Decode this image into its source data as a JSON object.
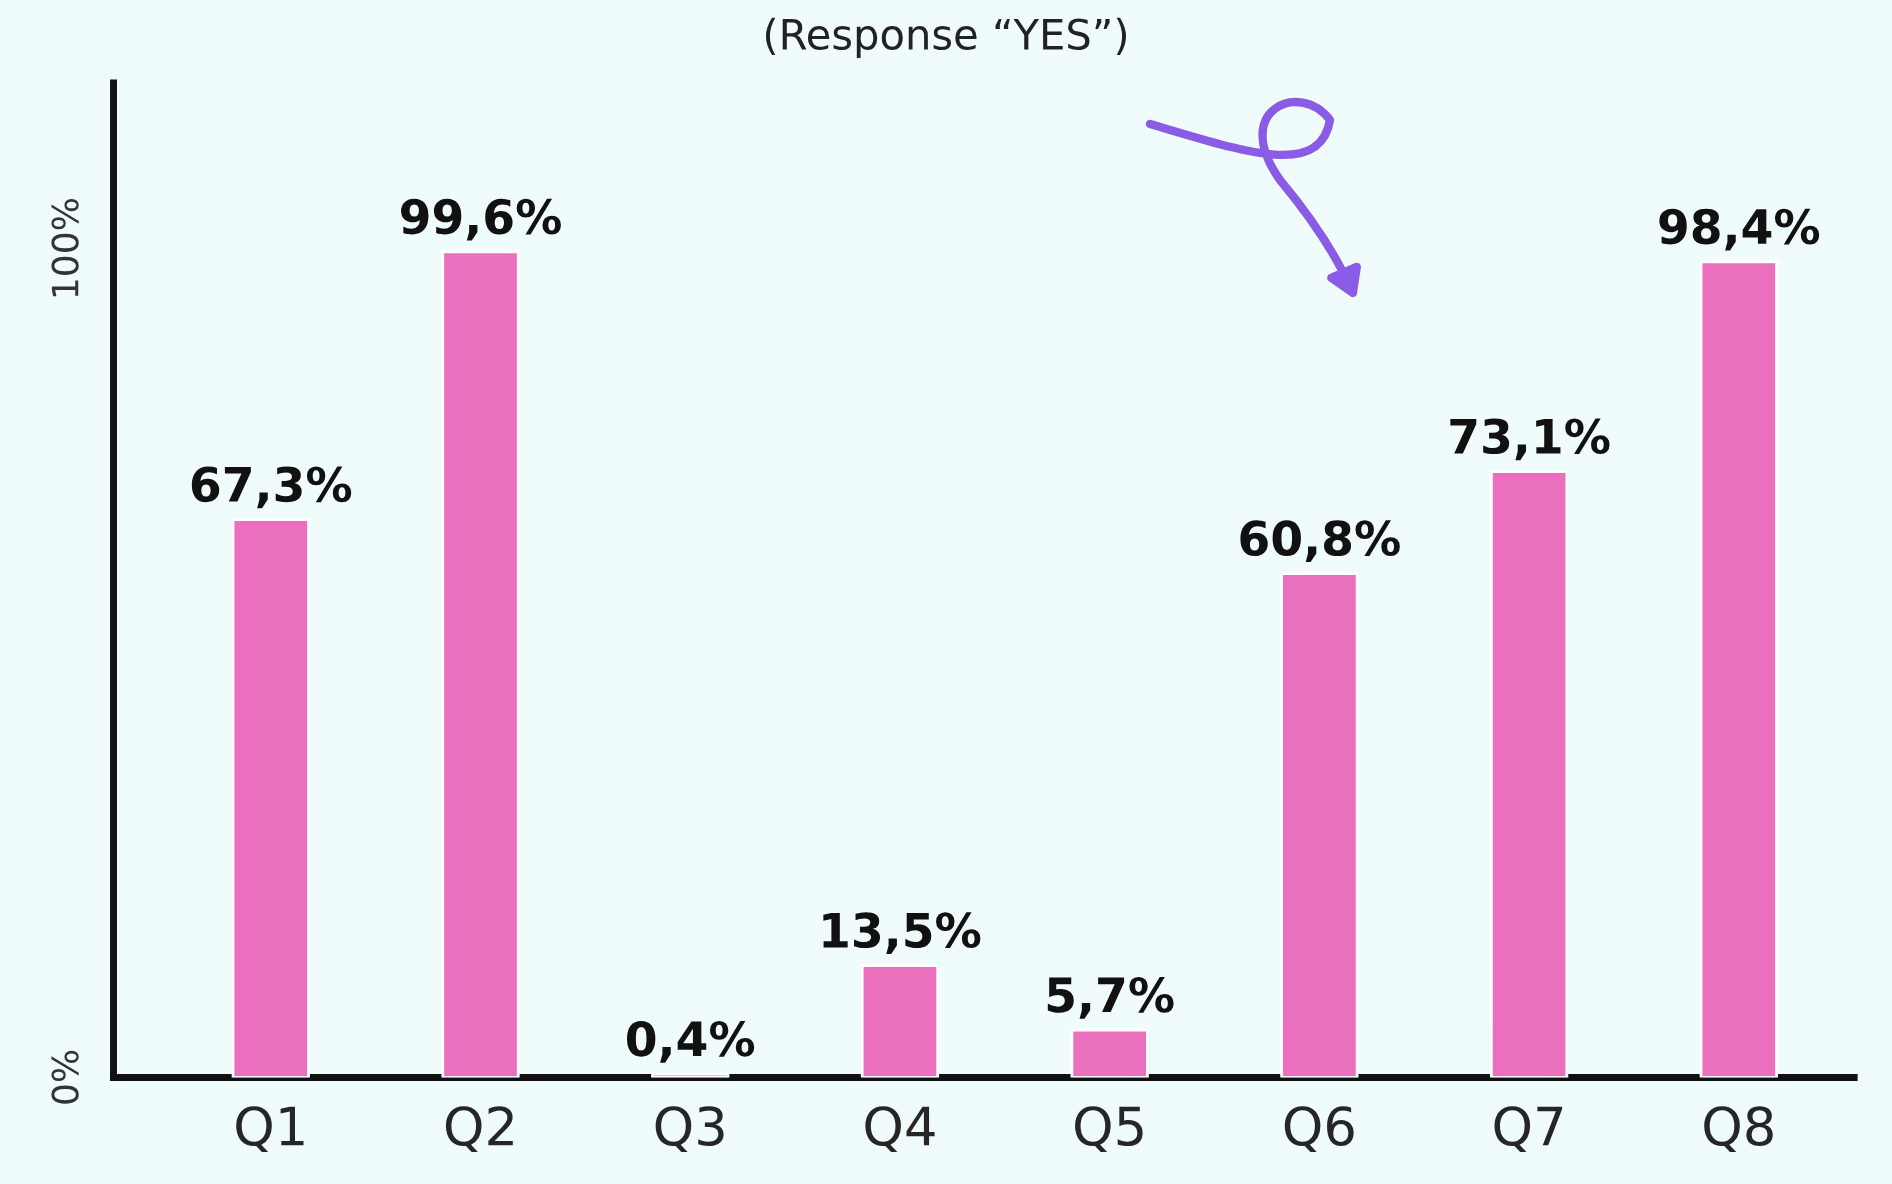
{
  "chart_data": {
    "type": "bar",
    "title": "(Response “YES”)",
    "categories": [
      "Q1",
      "Q2",
      "Q3",
      "Q4",
      "Q5",
      "Q6",
      "Q7",
      "Q8"
    ],
    "values": [
      67.3,
      99.6,
      0.4,
      13.5,
      5.7,
      60.8,
      73.1,
      98.4
    ],
    "value_labels": [
      "67,3%",
      "99,6%",
      "0,4%",
      "13,5%",
      "5,7%",
      "60,8%",
      "73,1%",
      "98,4%"
    ],
    "color": "#ea6fbf",
    "ylim": [
      0,
      120
    ],
    "yticks": [
      {
        "value": 0,
        "label": "0%"
      },
      {
        "value": 100,
        "label": "100%"
      }
    ],
    "grid": false,
    "legend": false
  }
}
